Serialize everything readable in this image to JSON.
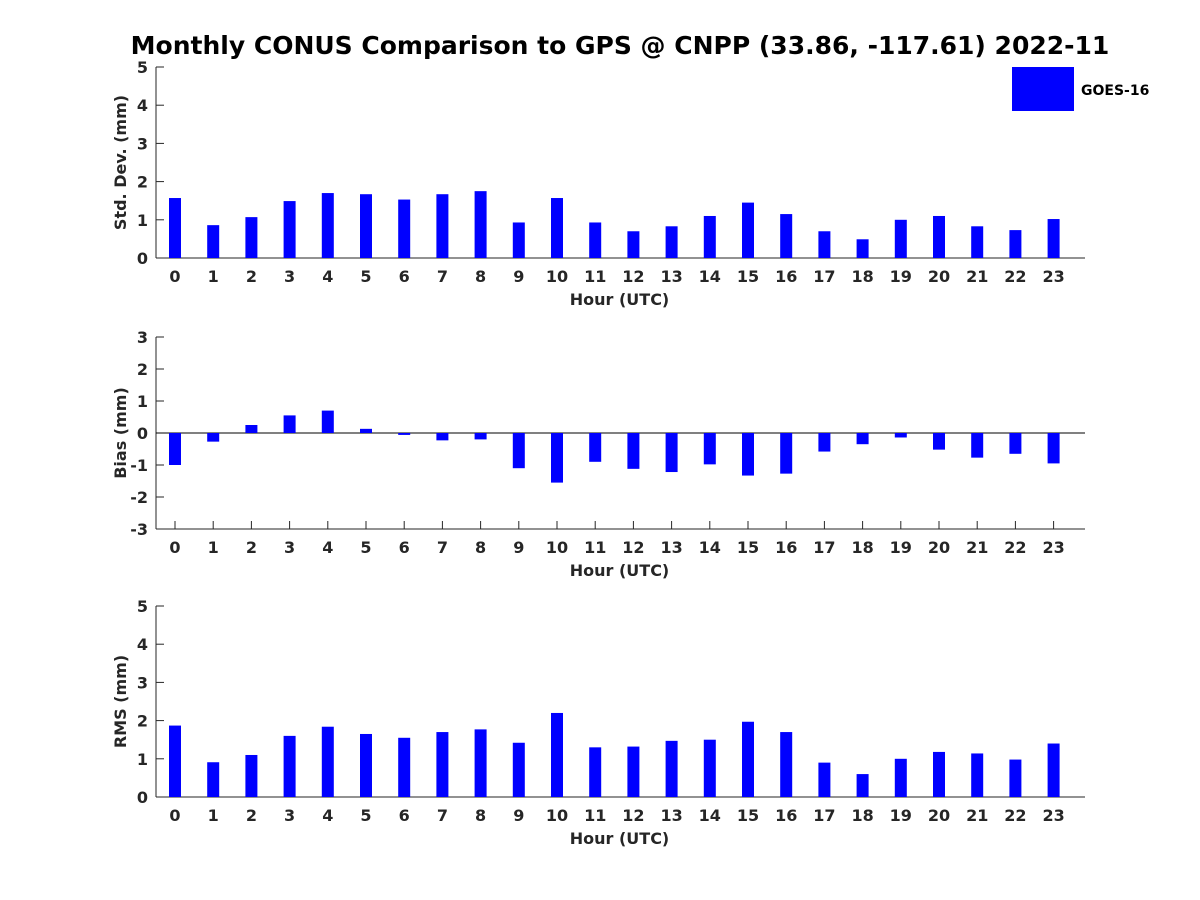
{
  "figure": {
    "title": "Monthly CONUS Comparison to GPS @ CNPP (33.86, -117.61) 2022-11"
  },
  "legend": {
    "label": "GOES-16",
    "color": "#0000ff",
    "position": "top-right"
  },
  "chart_data": [
    {
      "type": "bar",
      "title": "",
      "xlabel": "Hour (UTC)",
      "ylabel": "Std. Dev. (mm)",
      "categories": [
        "0",
        "1",
        "2",
        "3",
        "4",
        "5",
        "6",
        "7",
        "8",
        "9",
        "10",
        "11",
        "12",
        "13",
        "14",
        "15",
        "16",
        "17",
        "18",
        "19",
        "20",
        "21",
        "22",
        "23"
      ],
      "ylim": [
        0,
        5
      ],
      "yticks": [
        "0",
        "1",
        "2",
        "3",
        "4",
        "5"
      ],
      "series": [
        {
          "name": "GOES-16",
          "color": "#0000ff",
          "values": [
            1.57,
            0.86,
            1.07,
            1.49,
            1.7,
            1.67,
            1.53,
            1.67,
            1.75,
            0.93,
            1.57,
            0.93,
            0.7,
            0.83,
            1.1,
            1.45,
            1.15,
            0.7,
            0.49,
            1.0,
            1.1,
            0.83,
            0.73,
            1.02
          ]
        }
      ],
      "grid": false
    },
    {
      "type": "bar",
      "title": "",
      "xlabel": "Hour (UTC)",
      "ylabel": "Bias (mm)",
      "categories": [
        "0",
        "1",
        "2",
        "3",
        "4",
        "5",
        "6",
        "7",
        "8",
        "9",
        "10",
        "11",
        "12",
        "13",
        "14",
        "15",
        "16",
        "17",
        "18",
        "19",
        "20",
        "21",
        "22",
        "23"
      ],
      "ylim": [
        -3,
        3
      ],
      "yticks": [
        "-3",
        "-2",
        "-1",
        "0",
        "1",
        "2",
        "3"
      ],
      "series": [
        {
          "name": "GOES-16",
          "color": "#0000ff",
          "values": [
            -1.0,
            -0.27,
            0.25,
            0.55,
            0.7,
            0.13,
            -0.06,
            -0.23,
            -0.2,
            -1.1,
            -1.55,
            -0.9,
            -1.12,
            -1.22,
            -0.98,
            -1.33,
            -1.27,
            -0.58,
            -0.35,
            -0.14,
            -0.52,
            -0.77,
            -0.65,
            -0.95
          ]
        }
      ],
      "grid": false
    },
    {
      "type": "bar",
      "title": "",
      "xlabel": "Hour (UTC)",
      "ylabel": "RMS (mm)",
      "categories": [
        "0",
        "1",
        "2",
        "3",
        "4",
        "5",
        "6",
        "7",
        "8",
        "9",
        "10",
        "11",
        "12",
        "13",
        "14",
        "15",
        "16",
        "17",
        "18",
        "19",
        "20",
        "21",
        "22",
        "23"
      ],
      "ylim": [
        0,
        5
      ],
      "yticks": [
        "0",
        "1",
        "2",
        "3",
        "4",
        "5"
      ],
      "series": [
        {
          "name": "GOES-16",
          "color": "#0000ff",
          "values": [
            1.87,
            0.91,
            1.1,
            1.6,
            1.84,
            1.65,
            1.55,
            1.7,
            1.77,
            1.42,
            2.2,
            1.3,
            1.32,
            1.47,
            1.5,
            1.97,
            1.7,
            0.9,
            0.6,
            1.0,
            1.18,
            1.14,
            0.98,
            1.4
          ]
        }
      ],
      "grid": false
    }
  ]
}
